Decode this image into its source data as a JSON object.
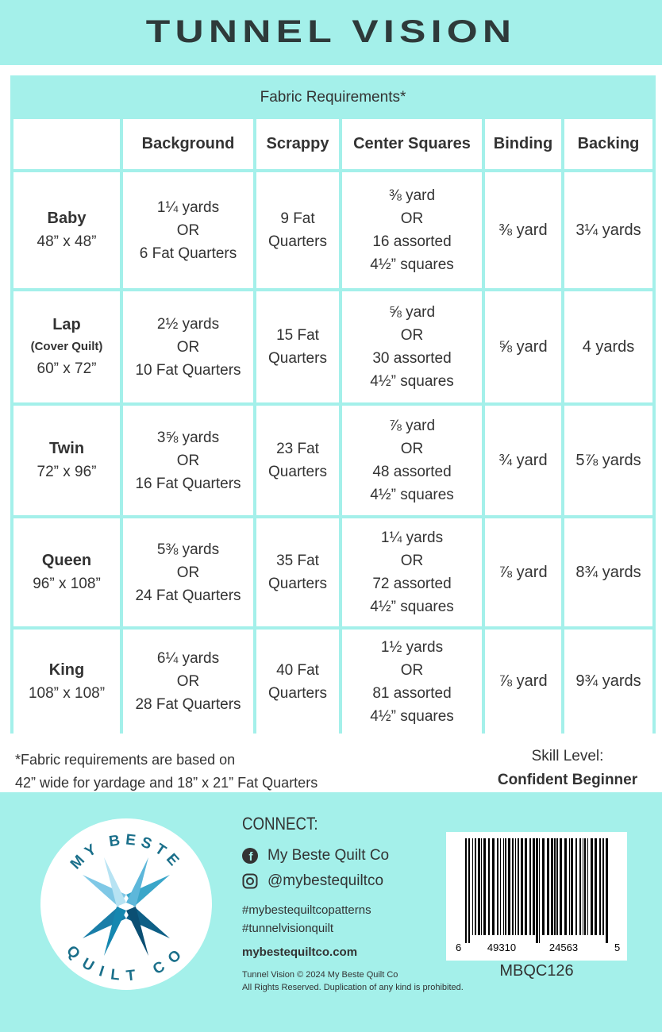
{
  "title": "TUNNEL VISION",
  "table": {
    "caption": "Fabric Requirements*",
    "headers": [
      "Background",
      "Scrappy",
      "Center Squares",
      "Binding",
      "Backing"
    ],
    "rows": [
      {
        "name": "Baby",
        "dims": "48” x 48”",
        "cells": [
          [
            "1¼ yards",
            "OR",
            "6 Fat Quarters"
          ],
          [
            "9 Fat",
            "Quarters"
          ],
          [
            "⅜ yard",
            "OR",
            "16 assorted",
            "4½” squares"
          ],
          [
            "⅜ yard"
          ],
          [
            "3¼ yards"
          ]
        ]
      },
      {
        "name": "Lap",
        "note": "(Cover Quilt)",
        "dims": "60” x 72”",
        "cells": [
          [
            "2½ yards",
            "OR",
            "10 Fat Quarters"
          ],
          [
            "15 Fat",
            "Quarters"
          ],
          [
            "⅝ yard",
            "OR",
            "30 assorted",
            "4½” squares"
          ],
          [
            "⅝ yard"
          ],
          [
            "4 yards"
          ]
        ]
      },
      {
        "name": "Twin",
        "dims": "72” x 96”",
        "cells": [
          [
            "3⅝ yards",
            "OR",
            "16 Fat Quarters"
          ],
          [
            "23 Fat",
            "Quarters"
          ],
          [
            "⅞  yard",
            "OR",
            "48 assorted",
            "4½” squares"
          ],
          [
            "¾ yard"
          ],
          [
            "5⅞ yards"
          ]
        ]
      },
      {
        "name": "Queen",
        "dims": "96” x 108”",
        "cells": [
          [
            "5⅜ yards",
            "OR",
            "24 Fat Quarters"
          ],
          [
            "35 Fat",
            "Quarters"
          ],
          [
            "1¼  yards",
            "OR",
            "72 assorted",
            "4½” squares"
          ],
          [
            "⅞ yard"
          ],
          [
            "8¾ yards"
          ]
        ]
      },
      {
        "name": "King",
        "dims": "108” x 108”",
        "cells": [
          [
            "6¼ yards",
            "OR",
            "28 Fat Quarters"
          ],
          [
            "40 Fat",
            "Quarters"
          ],
          [
            "1½  yards",
            "OR",
            "81 assorted",
            "4½” squares"
          ],
          [
            "⅞ yard"
          ],
          [
            "9¾ yards"
          ]
        ]
      }
    ]
  },
  "footnote": [
    "*Fabric requirements are based on",
    "42” wide for yardage and 18” x 21” Fat Quarters"
  ],
  "skill": {
    "label": "Skill Level:",
    "value": "Confident Beginner"
  },
  "logo": {
    "top": "MY BESTE",
    "bottom": "QUILT CO"
  },
  "connect": {
    "heading": "CONNECT:",
    "facebook": "My Beste Quilt Co",
    "instagram": "@mybestequiltco",
    "hashtags": [
      "#mybestequiltcopatterns",
      "#tunnelvisionquilt"
    ],
    "website": "mybestequiltco.com",
    "copyright": [
      "Tunnel Vision © 2024 My Beste Quilt Co",
      "All Rights Reserved. Duplication of any kind is prohibited."
    ]
  },
  "barcode": {
    "digits": [
      "6",
      "49310",
      "24563",
      "5"
    ],
    "code": "MBQC126"
  }
}
